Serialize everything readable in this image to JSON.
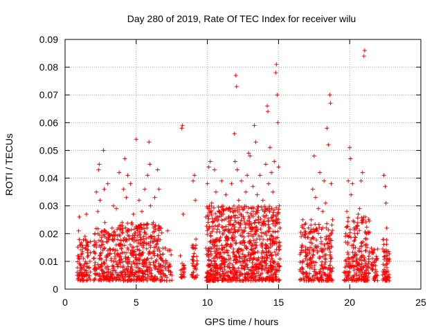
{
  "chart_data": {
    "type": "scatter",
    "title": "Day 280 of 2019, Rate Of TEC Index for receiver wilu",
    "xlabel": "GPS time / hours",
    "ylabel": "ROTI / TECUs",
    "xlim": [
      0,
      25
    ],
    "ylim": [
      0,
      0.09
    ],
    "xticks": [
      0,
      5,
      10,
      15,
      20,
      25
    ],
    "yticks": [
      0,
      0.01,
      0.02,
      0.03,
      0.04,
      0.05,
      0.06,
      0.07,
      0.08,
      0.09
    ],
    "xtick_labels": [
      "0",
      "5",
      "10",
      "15",
      "20",
      "25"
    ],
    "ytick_labels": [
      "0",
      "0.01",
      "0.02",
      "0.03",
      "0.04",
      "0.05",
      "0.06",
      "0.07",
      "0.08",
      "0.09"
    ],
    "grid": true,
    "marker": "+",
    "color": "#ff0000",
    "series": [
      {
        "points": [
          [
            0.85,
            0.006
          ],
          [
            0.9,
            0.012
          ],
          [
            0.95,
            0.021
          ],
          [
            1.0,
            0.026
          ],
          [
            1.05,
            0.009
          ],
          [
            1.1,
            0.016
          ],
          [
            1.2,
            0.005
          ],
          [
            1.3,
            0.011
          ],
          [
            1.4,
            0.019
          ],
          [
            1.5,
            0.027
          ],
          [
            1.55,
            0.008
          ],
          [
            1.6,
            0.014
          ],
          [
            1.7,
            0.004
          ],
          [
            1.75,
            0.01
          ],
          [
            2.0,
            0.011
          ],
          [
            2.1,
            0.02
          ],
          [
            2.2,
            0.035
          ],
          [
            2.3,
            0.028
          ],
          [
            2.35,
            0.043
          ],
          [
            2.4,
            0.045
          ],
          [
            2.45,
            0.032
          ],
          [
            2.5,
            0.015
          ],
          [
            2.55,
            0.009
          ],
          [
            2.6,
            0.007
          ],
          [
            2.7,
            0.05
          ],
          [
            2.75,
            0.036
          ],
          [
            2.8,
            0.024
          ],
          [
            2.9,
            0.012
          ],
          [
            3.0,
            0.038
          ],
          [
            3.1,
            0.018
          ],
          [
            3.2,
            0.006
          ],
          [
            3.3,
            0.022
          ],
          [
            3.4,
            0.03
          ],
          [
            3.5,
            0.011
          ],
          [
            3.6,
            0.029
          ],
          [
            3.7,
            0.008
          ],
          [
            3.8,
            0.042
          ],
          [
            3.9,
            0.016
          ],
          [
            4.0,
            0.024
          ],
          [
            4.1,
            0.036
          ],
          [
            4.2,
            0.047
          ],
          [
            4.3,
            0.033
          ],
          [
            4.4,
            0.041
          ],
          [
            4.5,
            0.019
          ],
          [
            4.6,
            0.038
          ],
          [
            4.7,
            0.014
          ],
          [
            4.8,
            0.027
          ],
          [
            4.9,
            0.009
          ],
          [
            5.0,
            0.054
          ],
          [
            5.1,
            0.021
          ],
          [
            5.2,
            0.032
          ],
          [
            5.3,
            0.012
          ],
          [
            5.4,
            0.028
          ],
          [
            5.5,
            0.018
          ],
          [
            5.6,
            0.036
          ],
          [
            5.7,
            0.009
          ],
          [
            5.8,
            0.041
          ],
          [
            5.9,
            0.053
          ],
          [
            5.95,
            0.045
          ],
          [
            6.0,
            0.03
          ],
          [
            6.2,
            0.024
          ],
          [
            6.3,
            0.033
          ],
          [
            6.4,
            0.016
          ],
          [
            6.5,
            0.043
          ],
          [
            6.6,
            0.036
          ],
          [
            6.7,
            0.011
          ],
          [
            7.0,
            0.008
          ],
          [
            7.2,
            0.021
          ],
          [
            7.4,
            0.014
          ],
          [
            7.5,
            0.005
          ],
          [
            8.1,
            0.012
          ],
          [
            8.2,
            0.058
          ],
          [
            8.25,
            0.059
          ],
          [
            8.3,
            0.027
          ],
          [
            8.35,
            0.007
          ],
          [
            8.9,
            0.005
          ],
          [
            9.0,
            0.039
          ],
          [
            9.1,
            0.041
          ],
          [
            9.15,
            0.032
          ],
          [
            9.2,
            0.018
          ],
          [
            9.25,
            0.009
          ],
          [
            9.9,
            0.026
          ],
          [
            10.0,
            0.038
          ],
          [
            10.1,
            0.044
          ],
          [
            10.2,
            0.046
          ],
          [
            10.3,
            0.031
          ],
          [
            10.4,
            0.024
          ],
          [
            10.5,
            0.043
          ],
          [
            10.6,
            0.035
          ],
          [
            10.7,
            0.018
          ],
          [
            10.8,
            0.028
          ],
          [
            10.9,
            0.013
          ],
          [
            11.0,
            0.039
          ],
          [
            11.1,
            0.027
          ],
          [
            11.2,
            0.021
          ],
          [
            11.3,
            0.034
          ],
          [
            11.4,
            0.016
          ],
          [
            11.5,
            0.029
          ],
          [
            11.6,
            0.011
          ],
          [
            11.7,
            0.038
          ],
          [
            11.8,
            0.023
          ],
          [
            11.9,
            0.056
          ],
          [
            11.95,
            0.046
          ],
          [
            12.0,
            0.077
          ],
          [
            12.05,
            0.073
          ],
          [
            12.1,
            0.043
          ],
          [
            12.2,
            0.032
          ],
          [
            12.3,
            0.027
          ],
          [
            12.4,
            0.039
          ],
          [
            12.5,
            0.014
          ],
          [
            12.6,
            0.021
          ],
          [
            12.7,
            0.035
          ],
          [
            12.8,
            0.041
          ],
          [
            12.9,
            0.049
          ],
          [
            13.0,
            0.048
          ],
          [
            13.1,
            0.029
          ],
          [
            13.2,
            0.037
          ],
          [
            13.3,
            0.059
          ],
          [
            13.4,
            0.053
          ],
          [
            13.5,
            0.034
          ],
          [
            13.6,
            0.026
          ],
          [
            13.7,
            0.041
          ],
          [
            13.8,
            0.019
          ],
          [
            13.9,
            0.032
          ],
          [
            14.0,
            0.028
          ],
          [
            14.1,
            0.045
          ],
          [
            14.2,
            0.066
          ],
          [
            14.25,
            0.064
          ],
          [
            14.3,
            0.038
          ],
          [
            14.4,
            0.051
          ],
          [
            14.5,
            0.042
          ],
          [
            14.6,
            0.035
          ],
          [
            14.7,
            0.046
          ],
          [
            14.8,
            0.078
          ],
          [
            14.85,
            0.081
          ],
          [
            14.9,
            0.07
          ],
          [
            14.95,
            0.06
          ],
          [
            15.0,
            0.044
          ],
          [
            15.05,
            0.03
          ],
          [
            15.1,
            0.022
          ],
          [
            16.5,
            0.007
          ],
          [
            16.6,
            0.014
          ],
          [
            16.7,
            0.025
          ],
          [
            16.8,
            0.019
          ],
          [
            16.9,
            0.011
          ],
          [
            17.0,
            0.009
          ],
          [
            17.2,
            0.013
          ],
          [
            17.3,
            0.025
          ],
          [
            17.4,
            0.036
          ],
          [
            17.5,
            0.048
          ],
          [
            17.6,
            0.033
          ],
          [
            17.7,
            0.021
          ],
          [
            17.8,
            0.029
          ],
          [
            17.9,
            0.042
          ],
          [
            18.0,
            0.017
          ],
          [
            18.1,
            0.028
          ],
          [
            18.2,
            0.039
          ],
          [
            18.3,
            0.031
          ],
          [
            18.4,
            0.058
          ],
          [
            18.5,
            0.052
          ],
          [
            18.6,
            0.07
          ],
          [
            18.65,
            0.067
          ],
          [
            18.7,
            0.038
          ],
          [
            18.8,
            0.025
          ],
          [
            19.6,
            0.006
          ],
          [
            19.7,
            0.019
          ],
          [
            19.8,
            0.028
          ],
          [
            19.9,
            0.039
          ],
          [
            20.0,
            0.051
          ],
          [
            20.05,
            0.047
          ],
          [
            20.1,
            0.034
          ],
          [
            20.2,
            0.038
          ],
          [
            20.3,
            0.022
          ],
          [
            20.4,
            0.015
          ],
          [
            20.5,
            0.011
          ],
          [
            20.6,
            0.027
          ],
          [
            20.7,
            0.029
          ],
          [
            20.8,
            0.039
          ],
          [
            20.9,
            0.042
          ],
          [
            21.0,
            0.084
          ],
          [
            21.05,
            0.086
          ],
          [
            21.1,
            0.026
          ],
          [
            21.2,
            0.018
          ],
          [
            21.3,
            0.009
          ],
          [
            21.6,
            0.013
          ],
          [
            21.8,
            0.007
          ],
          [
            22.4,
            0.041
          ],
          [
            22.5,
            0.037
          ],
          [
            22.55,
            0.031
          ],
          [
            22.6,
            0.022
          ],
          [
            22.65,
            0.012
          ],
          [
            22.7,
            0.004
          ]
        ]
      }
    ],
    "dense_clusters": [
      {
        "x_range": [
          0.85,
          1.8
        ],
        "y_range": [
          0.003,
          0.018
        ],
        "count": 90
      },
      {
        "x_range": [
          2.0,
          3.6
        ],
        "y_range": [
          0.003,
          0.022
        ],
        "count": 180
      },
      {
        "x_range": [
          3.6,
          6.8
        ],
        "y_range": [
          0.003,
          0.024
        ],
        "count": 420
      },
      {
        "x_range": [
          6.8,
          7.5
        ],
        "y_range": [
          0.003,
          0.015
        ],
        "count": 35
      },
      {
        "x_range": [
          8.1,
          8.4
        ],
        "y_range": [
          0.004,
          0.01
        ],
        "count": 20
      },
      {
        "x_range": [
          8.9,
          9.3
        ],
        "y_range": [
          0.004,
          0.016
        ],
        "count": 35
      },
      {
        "x_range": [
          9.9,
          15.1
        ],
        "y_range": [
          0.003,
          0.03
        ],
        "count": 900
      },
      {
        "x_range": [
          16.5,
          18.8
        ],
        "y_range": [
          0.003,
          0.024
        ],
        "count": 260
      },
      {
        "x_range": [
          19.6,
          21.4
        ],
        "y_range": [
          0.003,
          0.026
        ],
        "count": 220
      },
      {
        "x_range": [
          21.5,
          22.0
        ],
        "y_range": [
          0.003,
          0.015
        ],
        "count": 40
      },
      {
        "x_range": [
          22.3,
          22.8
        ],
        "y_range": [
          0.003,
          0.02
        ],
        "count": 60
      }
    ]
  }
}
